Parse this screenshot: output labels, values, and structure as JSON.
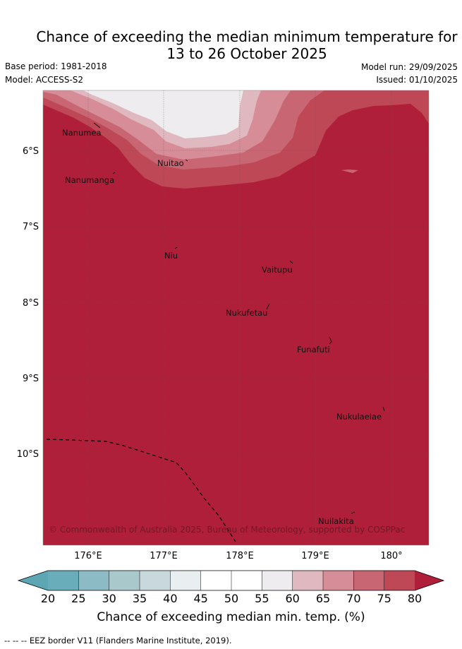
{
  "header": {
    "title_line1": "Chance of exceeding the median minimum temperature for",
    "title_line2": "13 to 26 October 2025",
    "base_period": "Base period: 1981-2018",
    "model": "Model: ACCESS-S2",
    "model_run": "Model run: 29/09/2025",
    "issued": "Issued: 01/10/2025"
  },
  "map": {
    "lat_labels": [
      "6°S",
      "7°S",
      "8°S",
      "9°S",
      "10°S"
    ],
    "lon_labels": [
      "176°E",
      "177°E",
      "178°E",
      "179°E",
      "180°"
    ],
    "places": [
      "Nanumea",
      "Nuitao",
      "Nanumanga",
      "Niu",
      "Vaitupu",
      "Nukufetau",
      "Funafuti",
      "Nukulaelae",
      "Nuilakita"
    ],
    "copyright": "© Commonwealth of Australia 2025, Bureau of Meteorology, supported by COSPPac"
  },
  "colorbar": {
    "ticks": [
      "20",
      "25",
      "30",
      "35",
      "40",
      "45",
      "50",
      "55",
      "60",
      "65",
      "70",
      "75",
      "80"
    ],
    "colors": [
      "#69adba",
      "#8cbbc6",
      "#a9c8cc",
      "#c9d8dc",
      "#e9eef0",
      "#ffffff",
      "#ffffff",
      "#eeecee",
      "#e0b8bf",
      "#d68d97",
      "#c96673",
      "#bf4856"
    ],
    "under_color": "#5da6b3",
    "over_color": "#b01f39",
    "label": "Chance of exceeding median min. temp. (%)"
  },
  "footer": {
    "legend": "--  --  -- EEZ border V11 (Flanders Marine Institute, 2019)."
  }
}
